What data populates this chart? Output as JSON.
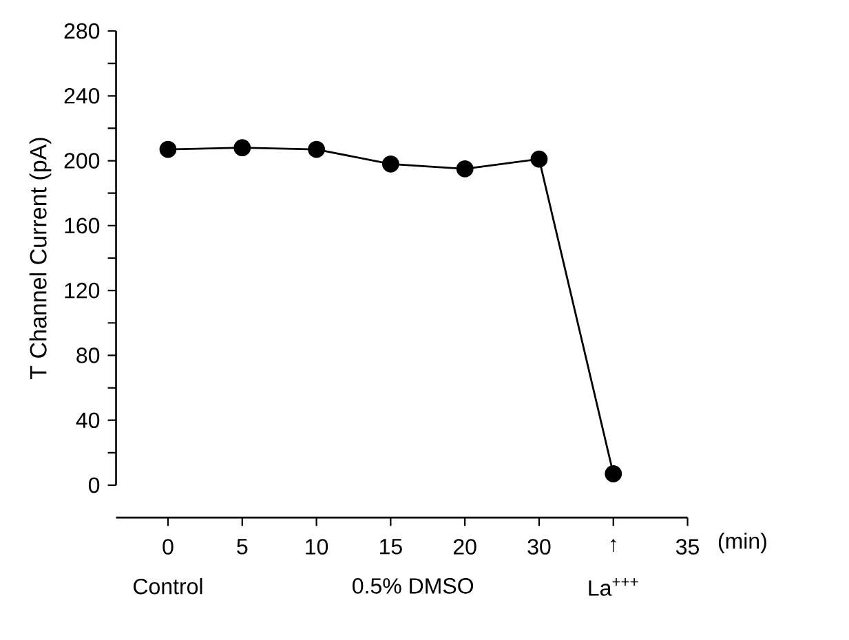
{
  "chart_data": {
    "type": "line",
    "ylabel": "T Channel Current (pA)",
    "categories": [
      "0",
      "5",
      "10",
      "15",
      "20",
      "30",
      "↑",
      "35"
    ],
    "values": [
      207,
      208,
      207,
      198,
      195,
      201,
      7,
      null
    ],
    "color": "#000000",
    "marker": "circle",
    "line_style": "solid",
    "ylim": [
      0,
      280
    ],
    "yticks": [
      0,
      40,
      80,
      120,
      160,
      200,
      240,
      280
    ],
    "annotations": [
      "(min)",
      "Control",
      "0.5% DMSO",
      "La$^{+++}$"
    ]
  }
}
